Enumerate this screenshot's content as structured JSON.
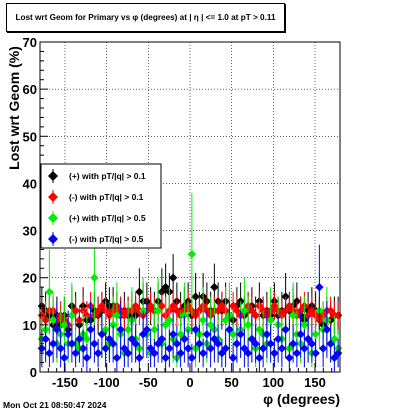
{
  "title": "Lost wrt Geom for Primary vs φ (degrees) at | η | <= 1.0 at pT > 0.11",
  "timestamp": "Mon Oct 21 08:50:47 2024",
  "chart_data": {
    "type": "scatter",
    "xlabel": "φ (degrees)",
    "ylabel": "Lost wrt Geom (%)",
    "xlim": [
      -180,
      180
    ],
    "ylim": [
      0,
      70
    ],
    "xticks": [
      -150,
      -100,
      -50,
      0,
      50,
      100,
      150
    ],
    "yticks": [
      0,
      10,
      20,
      30,
      40,
      50,
      60,
      70
    ],
    "grid": true,
    "legend_position": "left-middle",
    "bins": 80,
    "series": [
      {
        "name": "(+) with pT/|q| > 0.1",
        "color": "#000000",
        "marker": "diamond",
        "values": [
          14,
          13,
          12,
          10,
          12,
          10,
          12,
          9,
          14,
          13,
          10,
          14,
          11,
          11,
          13,
          12,
          13,
          15,
          14,
          14,
          13,
          12,
          13,
          12,
          13,
          12,
          17,
          15,
          15,
          14,
          13,
          15,
          17,
          18,
          17,
          20,
          15,
          13,
          14,
          15,
          12,
          16,
          13,
          16,
          15,
          13,
          18,
          15,
          13,
          15,
          12,
          11,
          14,
          15,
          12,
          13,
          14,
          12,
          15,
          12,
          13,
          12,
          15,
          12,
          13,
          16,
          13,
          14,
          15,
          12,
          11,
          13,
          14,
          13,
          12,
          10,
          9,
          11,
          12,
          12
        ],
        "errors": [
          4,
          4,
          4,
          4,
          4,
          3,
          4,
          3,
          4,
          4,
          3,
          4,
          4,
          4,
          4,
          4,
          4,
          4,
          4,
          4,
          4,
          4,
          4,
          4,
          4,
          4,
          5,
          4,
          4,
          4,
          4,
          4,
          5,
          5,
          4,
          5,
          4,
          4,
          4,
          4,
          4,
          5,
          4,
          5,
          4,
          4,
          5,
          4,
          4,
          4,
          4,
          4,
          4,
          4,
          4,
          4,
          4,
          4,
          4,
          4,
          4,
          4,
          4,
          4,
          4,
          5,
          4,
          4,
          4,
          4,
          4,
          4,
          4,
          4,
          4,
          3,
          3,
          4,
          4,
          4
        ]
      },
      {
        "name": "(-) with pT/|q| > 0.1",
        "color": "#ff0000",
        "marker": "diamond",
        "values": [
          12,
          11,
          13,
          13,
          11,
          12,
          11,
          10,
          12,
          13,
          11,
          13,
          12,
          14,
          12,
          13,
          14,
          13,
          12,
          13,
          14,
          13,
          12,
          13,
          13,
          14,
          13,
          12,
          13,
          14,
          13,
          13,
          14,
          12,
          13,
          14,
          13,
          12,
          13,
          14,
          13,
          12,
          13,
          14,
          13,
          12,
          13,
          13,
          14,
          13,
          12,
          14,
          13,
          12,
          13,
          14,
          13,
          12,
          14,
          13,
          12,
          13,
          14,
          13,
          12,
          13,
          14,
          13,
          12,
          13,
          14,
          12,
          13,
          12,
          11,
          12,
          13,
          13,
          12,
          12
        ],
        "errors": [
          3,
          3,
          3,
          3,
          3,
          3,
          3,
          3,
          3,
          3,
          3,
          3,
          3,
          3,
          3,
          3,
          3,
          3,
          3,
          3,
          3,
          3,
          3,
          3,
          3,
          3,
          3,
          3,
          3,
          3,
          3,
          3,
          3,
          3,
          3,
          3,
          3,
          3,
          3,
          3,
          3,
          3,
          3,
          3,
          3,
          3,
          3,
          3,
          3,
          3,
          3,
          3,
          3,
          3,
          3,
          3,
          3,
          3,
          3,
          3,
          3,
          3,
          3,
          3,
          3,
          3,
          3,
          3,
          3,
          3,
          3,
          3,
          3,
          3,
          3,
          3,
          3,
          3,
          3,
          3
        ]
      },
      {
        "name": "(+) with pT/|q| > 0.5",
        "color": "#00ee00",
        "marker": "diamond",
        "values": [
          7,
          9,
          17,
          11,
          6,
          8,
          10,
          6,
          12,
          6,
          5,
          8,
          7,
          9,
          20,
          4,
          8,
          9,
          6,
          10,
          12,
          8,
          4,
          9,
          11,
          7,
          5,
          13,
          8,
          4,
          9,
          13,
          6,
          10,
          11,
          7,
          3,
          8,
          12,
          9,
          25,
          5,
          8,
          11,
          6,
          10,
          9,
          7,
          4,
          11,
          12,
          8,
          6,
          9,
          13,
          10,
          7,
          5,
          9,
          8,
          6,
          11,
          4,
          10,
          7,
          9,
          5,
          12,
          8,
          6,
          10,
          7,
          4,
          8,
          13,
          9,
          11,
          6,
          7,
          5
        ],
        "errors": [
          5,
          6,
          9,
          6,
          4,
          5,
          6,
          4,
          7,
          4,
          3,
          5,
          5,
          6,
          10,
          3,
          5,
          6,
          4,
          6,
          7,
          5,
          3,
          6,
          7,
          5,
          3,
          7,
          5,
          3,
          6,
          7,
          4,
          6,
          7,
          5,
          2,
          5,
          7,
          6,
          13,
          4,
          5,
          7,
          4,
          6,
          6,
          5,
          3,
          7,
          7,
          5,
          4,
          6,
          7,
          6,
          5,
          4,
          6,
          5,
          4,
          7,
          3,
          6,
          5,
          6,
          4,
          7,
          5,
          4,
          6,
          5,
          3,
          5,
          8,
          6,
          7,
          4,
          5,
          4
        ]
      },
      {
        "name": "(-) with pT/|q| > 0.5",
        "color": "#0000ff",
        "marker": "diamond",
        "values": [
          5,
          7,
          4,
          6,
          9,
          5,
          3,
          8,
          6,
          4,
          7,
          5,
          3,
          9,
          6,
          4,
          8,
          5,
          7,
          6,
          3,
          9,
          5,
          4,
          7,
          6,
          3,
          8,
          9,
          5,
          4,
          6,
          7,
          3,
          5,
          8,
          6,
          4,
          7,
          5,
          3,
          9,
          6,
          4,
          8,
          5,
          7,
          6,
          4,
          5,
          9,
          3,
          6,
          8,
          5,
          4,
          7,
          6,
          3,
          5,
          8,
          6,
          4,
          7,
          5,
          9,
          3,
          6,
          4,
          8,
          5,
          7,
          6,
          4,
          18,
          5,
          9,
          6,
          3,
          4
        ],
        "errors": [
          4,
          5,
          3,
          4,
          6,
          4,
          3,
          5,
          4,
          3,
          5,
          4,
          3,
          6,
          4,
          3,
          5,
          4,
          5,
          4,
          3,
          6,
          4,
          3,
          5,
          4,
          3,
          5,
          6,
          4,
          3,
          4,
          5,
          3,
          4,
          5,
          4,
          3,
          5,
          4,
          3,
          6,
          4,
          3,
          5,
          4,
          5,
          4,
          3,
          4,
          6,
          3,
          4,
          5,
          4,
          3,
          5,
          4,
          3,
          4,
          5,
          4,
          3,
          5,
          4,
          6,
          3,
          4,
          3,
          5,
          4,
          5,
          4,
          3,
          9,
          4,
          6,
          4,
          3,
          3
        ]
      }
    ]
  }
}
